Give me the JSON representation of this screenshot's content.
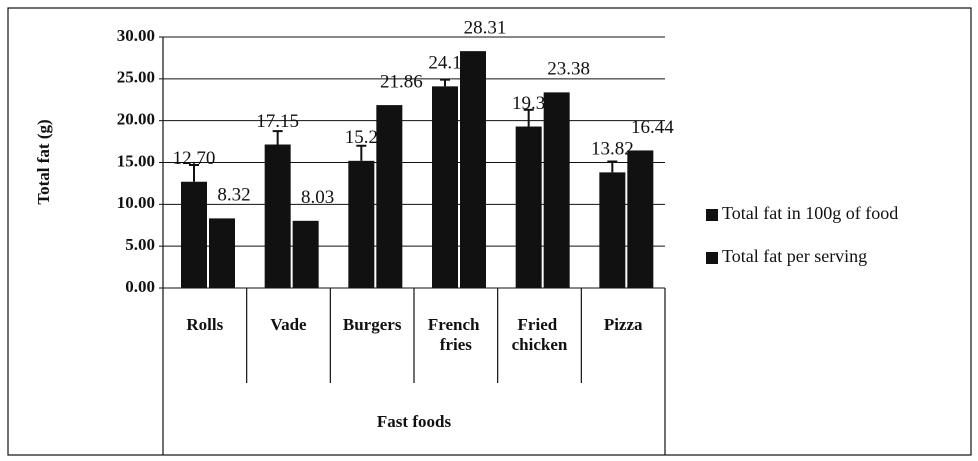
{
  "chart_data": {
    "type": "bar",
    "y_label": "Total fat (g)",
    "x_label": "Fast foods",
    "categories": [
      "Rolls",
      "Vade",
      "Burgers",
      "French fries",
      "Fried chicken",
      "Pizza"
    ],
    "series": [
      {
        "name": "Total fat in 100g of food",
        "color": "#111111",
        "values": [
          12.7,
          17.15,
          15.2,
          24.1,
          19.3,
          13.82
        ],
        "value_labels": [
          "12.70",
          "17.15",
          "15.2",
          "24.1",
          "19.3",
          "13.82"
        ],
        "errors": [
          2.0,
          1.6,
          1.8,
          0.8,
          2.0,
          1.3
        ]
      },
      {
        "name": "Total fat per serving",
        "color": "#111111",
        "values": [
          8.32,
          8.03,
          21.86,
          28.31,
          23.38,
          16.44
        ],
        "value_labels": [
          "8.32",
          "8.03",
          "21.86",
          "28.31",
          "23.38",
          "16.44"
        ]
      }
    ],
    "ylim": [
      0,
      30
    ],
    "yticks": [
      {
        "value": 0,
        "label": "0.00"
      },
      {
        "value": 5,
        "label": "5.00"
      },
      {
        "value": 10,
        "label": "10.00"
      },
      {
        "value": 15,
        "label": "15.00"
      },
      {
        "value": 20,
        "label": "20.00"
      },
      {
        "value": 25,
        "label": "25.00"
      },
      {
        "value": 30,
        "label": "30.00"
      }
    ],
    "grid": true,
    "legend": "right"
  }
}
